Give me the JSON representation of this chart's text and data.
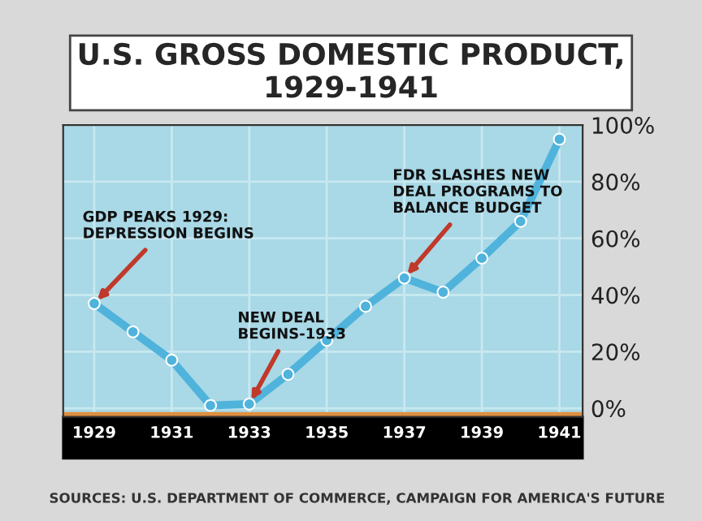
{
  "chart_data": {
    "type": "line",
    "title": "U.S. GROSS DOMESTIC PRODUCT,\n1929-1941",
    "x": [
      1929,
      1930,
      1931,
      1932,
      1933,
      1934,
      1935,
      1936,
      1937,
      1938,
      1939,
      1940,
      1941
    ],
    "series": [
      {
        "color": "#4fb3dc",
        "values": [
          37,
          27,
          17,
          1,
          1.5,
          12,
          24,
          36,
          46,
          41,
          53,
          66,
          95
        ]
      }
    ],
    "xlim": [
      1928.2,
      1941.6
    ],
    "xticks": [
      1929,
      1931,
      1933,
      1935,
      1937,
      1939,
      1941
    ],
    "ylim": [
      -3,
      100
    ],
    "yticks": [
      {
        "value": 0,
        "label": "0%"
      },
      {
        "value": 20,
        "label": "20%"
      },
      {
        "value": 40,
        "label": "40%"
      },
      {
        "value": 60,
        "label": "60%"
      },
      {
        "value": 80,
        "label": "80%"
      },
      {
        "value": 100,
        "label": "100%"
      }
    ],
    "grid": true,
    "marker": "circle",
    "line_style": "solid",
    "annotations": [
      {
        "text": "GDP PEAKS 1929:\nDEPRESSION BEGINS",
        "x": 1929,
        "y": 37
      },
      {
        "text": "NEW DEAL\nBEGINS-1933",
        "x": 1933,
        "y": 1.5
      },
      {
        "text": "FDR SLASHES NEW\nDEAL PROGRAMS TO\nBALANCE BUDGET",
        "x": 1937,
        "y": 46
      },
      "SOURCES: U.S. DEPARTMENT OF COMMERCE, CAMPAIGN FOR AMERICA'S FUTURE"
    ]
  }
}
